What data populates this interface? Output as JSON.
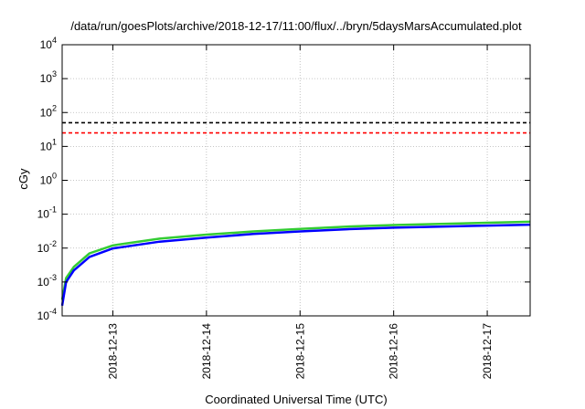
{
  "chart_data": {
    "type": "line",
    "title": "/data/run/goesPlots/archive/2018-12-17/11:00/flux/../bryn/5daysMarsAccumulated.plot",
    "xlabel": "Coordinated Universal Time (UTC)",
    "ylabel": "cGy",
    "xscale": "time",
    "yscale": "log",
    "xlim": [
      "2018-12-12T11:00",
      "2018-12-17T11:00"
    ],
    "ylim": [
      0.0001,
      10000
    ],
    "grid": true,
    "x_ticks": [
      "2018-12-13",
      "2018-12-14",
      "2018-12-15",
      "2018-12-16",
      "2018-12-17"
    ],
    "y_ticks": [
      {
        "base": "10",
        "exp": "-4"
      },
      {
        "base": "10",
        "exp": "-3"
      },
      {
        "base": "10",
        "exp": "-2"
      },
      {
        "base": "10",
        "exp": "-1"
      },
      {
        "base": "10",
        "exp": "0"
      },
      {
        "base": "10",
        "exp": "1"
      },
      {
        "base": "10",
        "exp": "2"
      },
      {
        "base": "10",
        "exp": "3"
      },
      {
        "base": "10",
        "exp": "4"
      }
    ],
    "reference_lines": [
      {
        "y": 50,
        "color": "#000000",
        "style": "dashed"
      },
      {
        "y": 25,
        "color": "#ff0000",
        "style": "dashed"
      }
    ],
    "series": [
      {
        "color": "#33cc33",
        "x": [
          "2018-12-12T11:00",
          "2018-12-12T12:00",
          "2018-12-12T14:00",
          "2018-12-12T18:00",
          "2018-12-13T00:00",
          "2018-12-13T12:00",
          "2018-12-14T00:00",
          "2018-12-14T12:00",
          "2018-12-15T00:00",
          "2018-12-15T12:00",
          "2018-12-16T00:00",
          "2018-12-16T12:00",
          "2018-12-17T00:00",
          "2018-12-17T11:00"
        ],
        "y": [
          0.0003,
          0.0013,
          0.0028,
          0.007,
          0.012,
          0.019,
          0.025,
          0.031,
          0.037,
          0.043,
          0.048,
          0.052,
          0.056,
          0.06
        ]
      },
      {
        "color": "#0000ff",
        "x": [
          "2018-12-12T11:00",
          "2018-12-12T12:00",
          "2018-12-12T14:00",
          "2018-12-12T18:00",
          "2018-12-13T00:00",
          "2018-12-13T12:00",
          "2018-12-14T00:00",
          "2018-12-14T12:00",
          "2018-12-15T00:00",
          "2018-12-15T12:00",
          "2018-12-16T00:00",
          "2018-12-16T12:00",
          "2018-12-17T00:00",
          "2018-12-17T11:00"
        ],
        "y": [
          0.0002,
          0.001,
          0.0022,
          0.0055,
          0.0098,
          0.0155,
          0.0205,
          0.026,
          0.031,
          0.036,
          0.04,
          0.043,
          0.046,
          0.049
        ]
      }
    ]
  }
}
